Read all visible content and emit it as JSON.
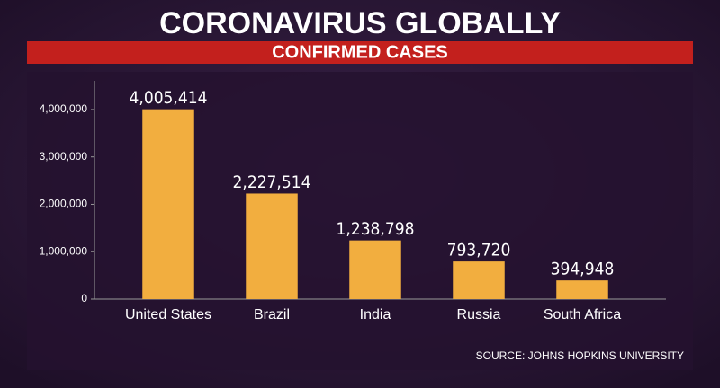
{
  "chart_data": {
    "type": "bar",
    "title": "CORONAVIRUS GLOBALLY",
    "subtitle": "CONFIRMED CASES",
    "source": "SOURCE: JOHNS HOPKINS UNIVERSITY",
    "categories": [
      "United States",
      "Brazil",
      "India",
      "Russia",
      "South Africa"
    ],
    "values": [
      4005414,
      2227514,
      1238798,
      793720,
      394948
    ],
    "value_labels": [
      "4,005,414",
      "2,227,514",
      "1,238,798",
      "793,720",
      "394,948"
    ],
    "color": "#f2ae3f",
    "ylim": [
      0,
      4700000
    ],
    "yticks": [
      0,
      {
        "value": 1000000,
        "label": "1,000,000"
      },
      {
        "value": 2000000,
        "label": "2,000,000"
      },
      {
        "value": 3000000,
        "label": "3,000,000"
      },
      {
        "value": 4000000,
        "label": "4,000,000"
      }
    ],
    "grid": false
  }
}
